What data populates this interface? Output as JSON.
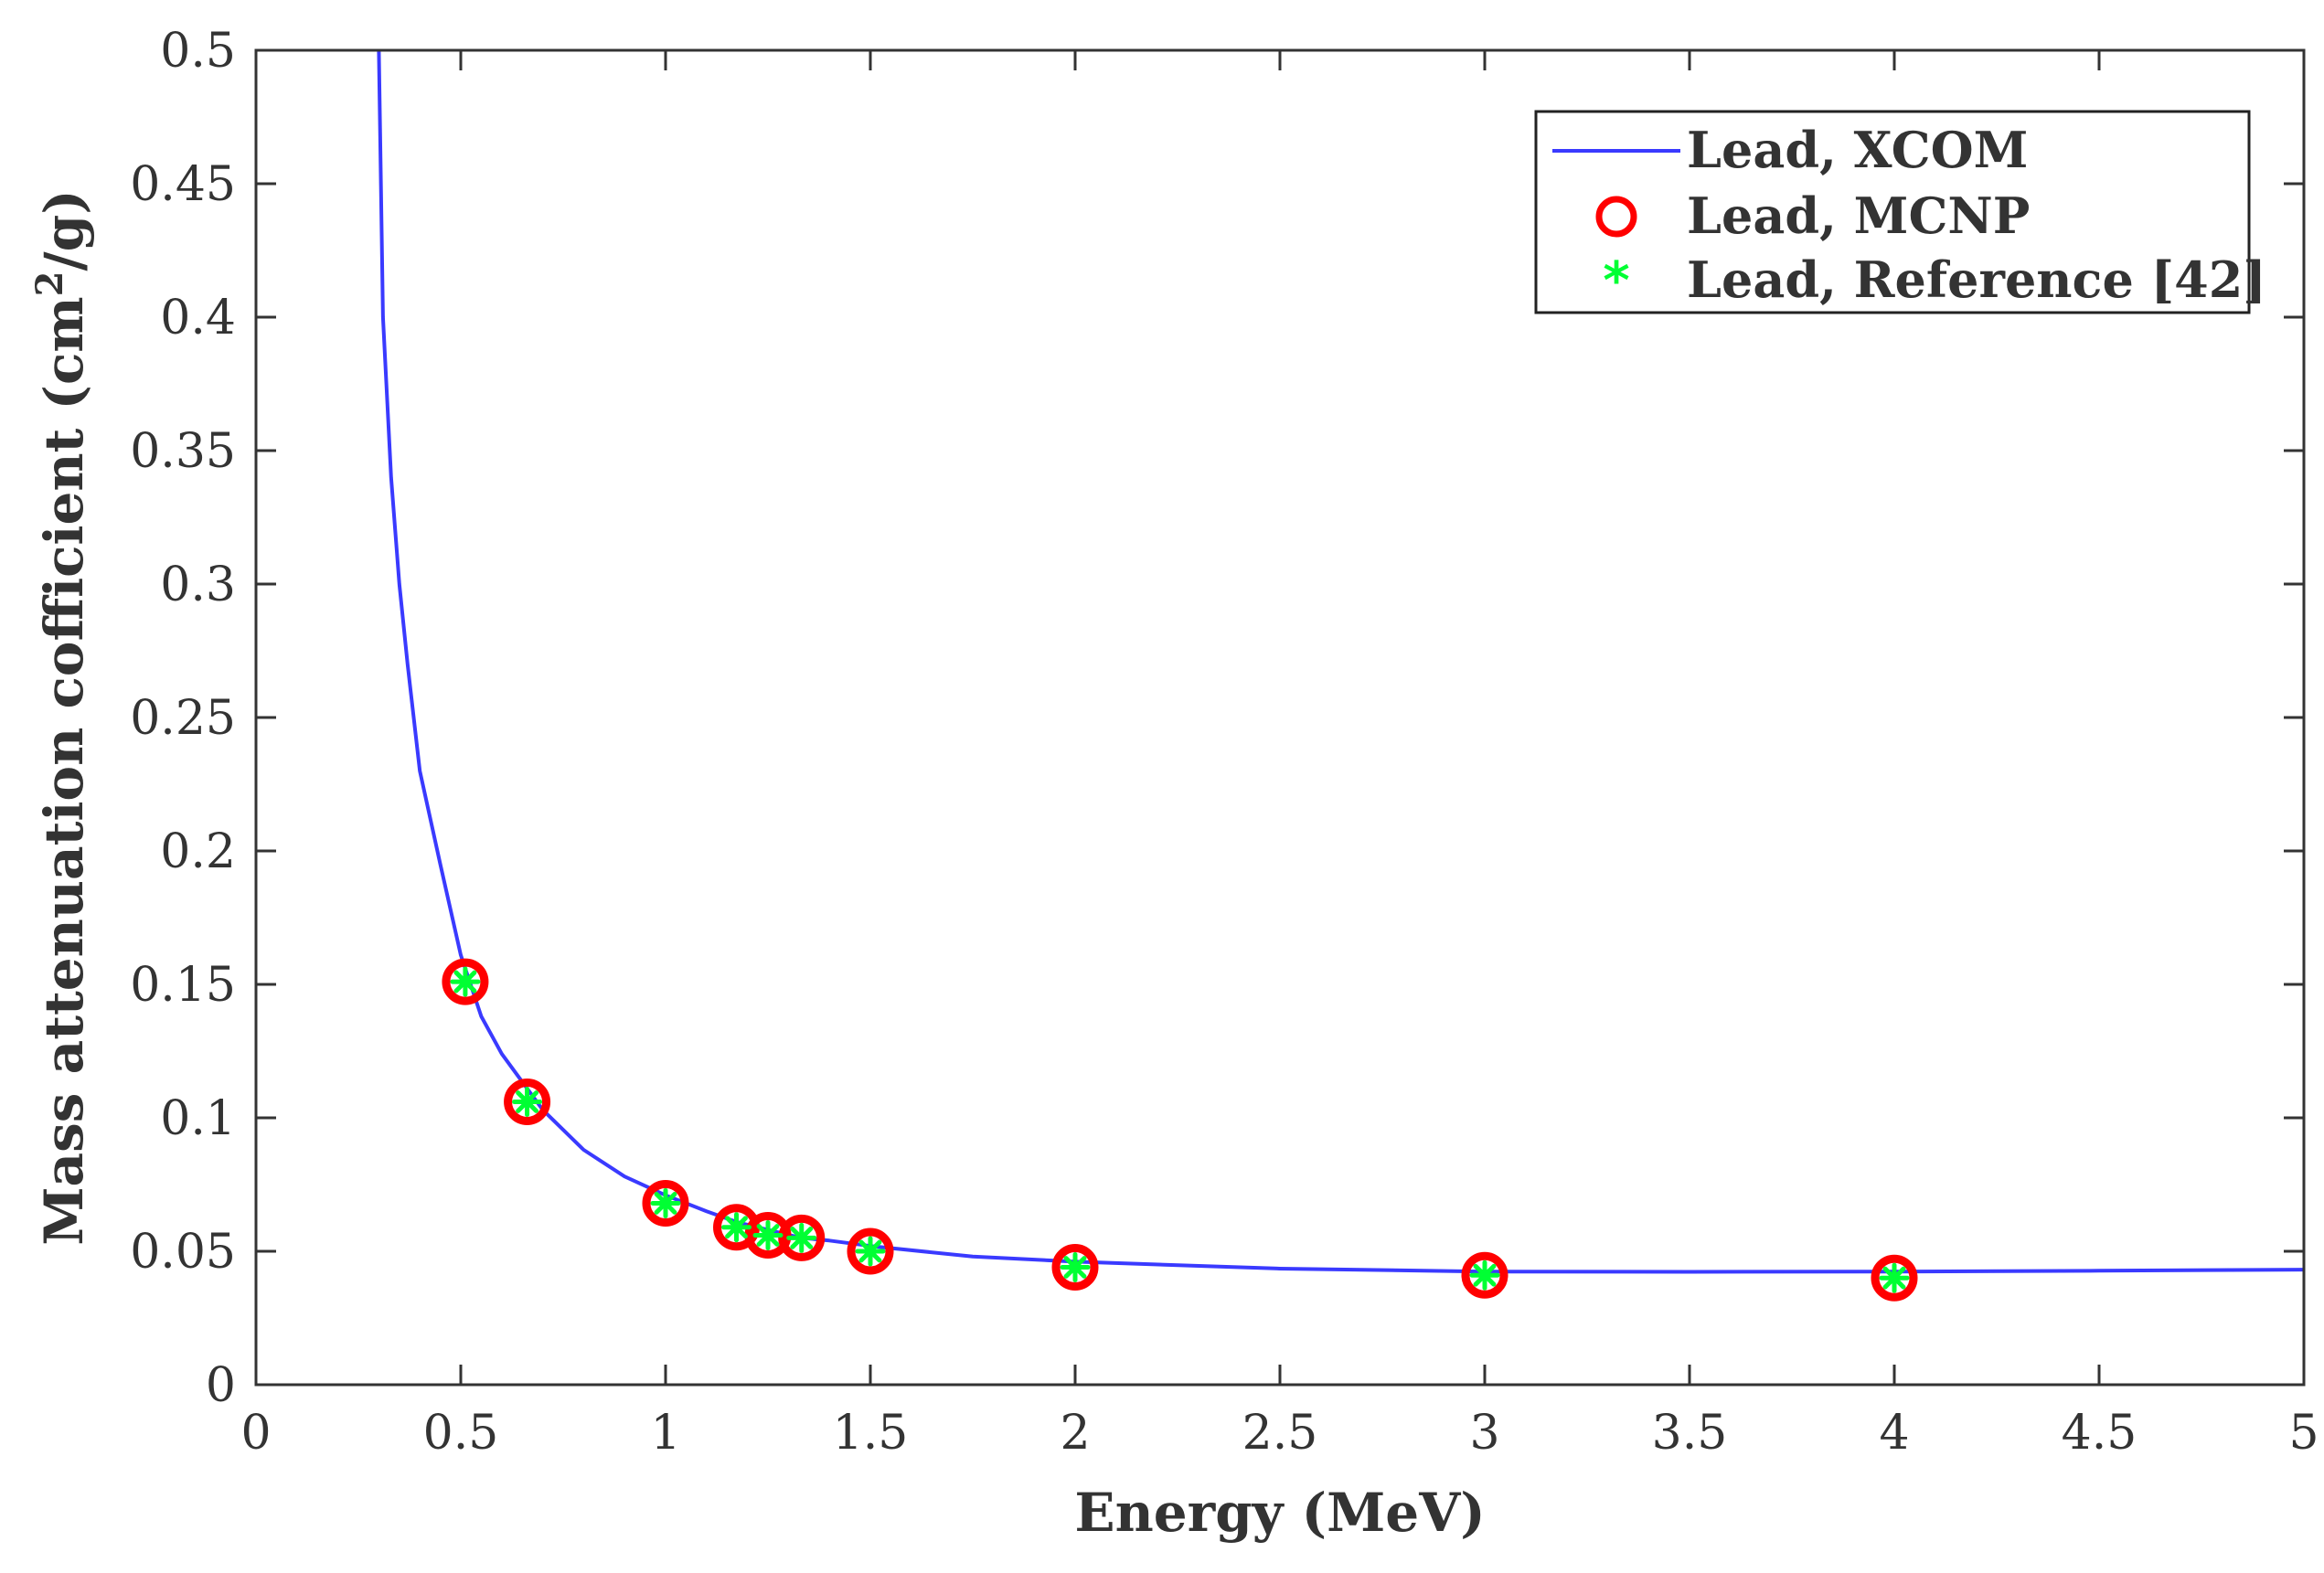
{
  "chart_data": {
    "type": "line",
    "title": "",
    "xlabel": "Energy (MeV)",
    "ylabel": "Mass attenuation cofficient (cm",
    "ylabel_sup": "2",
    "ylabel_tail": "/g)",
    "xlim": [
      0,
      5
    ],
    "ylim": [
      0,
      0.5
    ],
    "xticks": [
      0,
      0.5,
      1,
      1.5,
      2,
      2.5,
      3,
      3.5,
      4,
      4.5,
      5
    ],
    "xtick_labels": [
      "0",
      "0.5",
      "1",
      "1.5",
      "2",
      "2.5",
      "3",
      "3.5",
      "4",
      "4.5",
      "5"
    ],
    "yticks": [
      0,
      0.05,
      0.1,
      0.15,
      0.2,
      0.25,
      0.3,
      0.35,
      0.4,
      0.45,
      0.5
    ],
    "ytick_labels": [
      "0",
      "0.05",
      "0.1",
      "0.15",
      "0.2",
      "0.25",
      "0.3",
      "0.35",
      "0.4",
      "0.45",
      "0.5"
    ],
    "grid": false,
    "legend_position": "top-right",
    "series": [
      {
        "name": "Lead, XCOM",
        "style": "line",
        "color": "#3a3aff",
        "x": [
          0.3,
          0.31,
          0.33,
          0.35,
          0.37,
          0.4,
          0.45,
          0.5,
          0.55,
          0.6,
          0.662,
          0.7,
          0.8,
          0.9,
          1.0,
          1.1,
          1.173,
          1.25,
          1.332,
          1.4,
          1.5,
          1.75,
          2.0,
          2.5,
          3.0,
          3.5,
          4.0,
          4.5,
          5.0
        ],
        "y": [
          0.5,
          0.4,
          0.34,
          0.3,
          0.27,
          0.23,
          0.195,
          0.161,
          0.138,
          0.124,
          0.111,
          0.103,
          0.088,
          0.078,
          0.071,
          0.065,
          0.061,
          0.058,
          0.055,
          0.054,
          0.052,
          0.048,
          0.0461,
          0.0435,
          0.0424,
          0.0423,
          0.0424,
          0.0427,
          0.0431
        ]
      },
      {
        "name": "Lead, MCNP",
        "style": "marker-circle",
        "color": "#ff0000",
        "x": [
          0.511,
          0.662,
          1.0,
          1.173,
          1.25,
          1.332,
          1.5,
          2.0,
          3.0,
          4.0
        ],
        "y": [
          0.151,
          0.106,
          0.068,
          0.059,
          0.056,
          0.055,
          0.05,
          0.044,
          0.041,
          0.04
        ]
      },
      {
        "name": "Lead, Reference [42]",
        "style": "marker-star",
        "color": "#00ff33",
        "x": [
          0.511,
          0.662,
          1.0,
          1.173,
          1.25,
          1.332,
          1.5,
          2.0,
          3.0,
          4.0
        ],
        "y": [
          0.151,
          0.106,
          0.068,
          0.059,
          0.056,
          0.055,
          0.05,
          0.044,
          0.041,
          0.04
        ]
      }
    ]
  }
}
